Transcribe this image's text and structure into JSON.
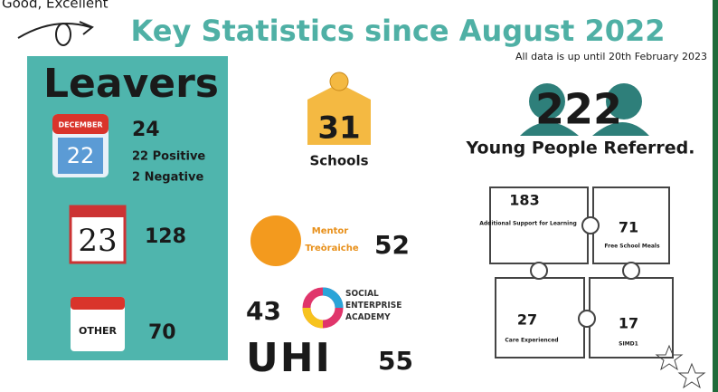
{
  "corner_text": "Good, Excellent",
  "header": {
    "title": "Key Statistics since August 2022",
    "subtitle": "All data is up until 20th February 2023"
  },
  "leavers": {
    "title": "Leavers",
    "december": {
      "month": "DECEMBER",
      "day": "22",
      "total": 24,
      "positive": "22 Positive",
      "negative": "2 Negative"
    },
    "may": {
      "day": "23",
      "total": 128
    },
    "other": {
      "label": "OTHER",
      "total": 70
    }
  },
  "schools": {
    "value": 31,
    "label": "Schools"
  },
  "referred": {
    "value": 222,
    "label": "Young People Referred."
  },
  "puzzle": [
    {
      "value": 183,
      "label": "Additional Support for Learning"
    },
    {
      "value": 71,
      "label": "Free School Meals"
    },
    {
      "value": 27,
      "label": "Care Experienced"
    },
    {
      "value": 17,
      "label": "SIMD1"
    }
  ],
  "partners": [
    {
      "name": "Mentor",
      "subname": "Treòraiche",
      "value": 52
    },
    {
      "name": "SOCIAL ENTERPRISE ACADEMY",
      "value": 43
    },
    {
      "name": "UHI",
      "value": 55
    }
  ]
}
